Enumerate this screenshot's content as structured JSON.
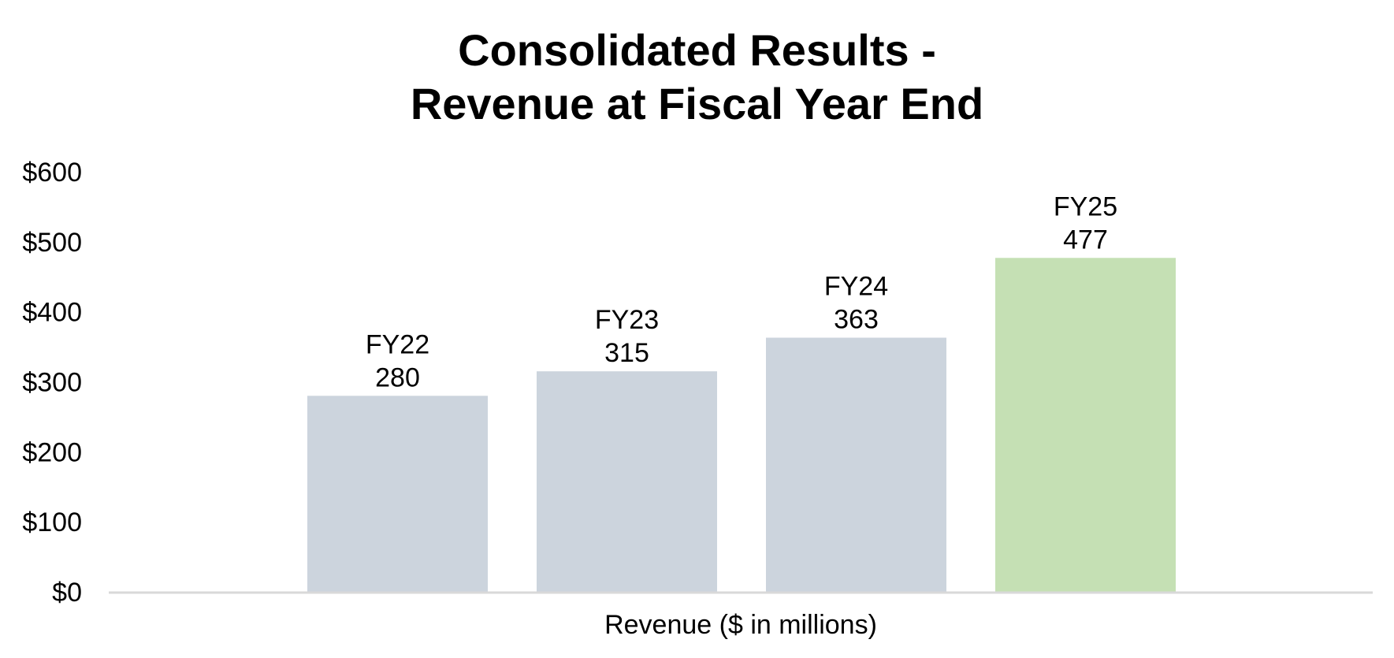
{
  "chart_data": {
    "type": "bar",
    "title": [
      "Consolidated Results -",
      "Revenue at Fiscal Year End"
    ],
    "xlabel": "Revenue ($ in millions)",
    "ylabel": "",
    "categories": [
      "FY22",
      "FY23",
      "FY24",
      "FY25"
    ],
    "values": [
      280,
      315,
      363,
      477
    ],
    "data_labels": [
      "280",
      "315",
      "363",
      "477"
    ],
    "ylim": [
      0,
      600
    ],
    "yticks": [
      0,
      100,
      200,
      300,
      400,
      500,
      600
    ],
    "ytick_labels": [
      "$0",
      "$100",
      "$200",
      "$300",
      "$400",
      "$500",
      "$600"
    ],
    "grid": false,
    "legend": "none",
    "colors": {
      "bar_default": "#ccd4dd",
      "bar_highlight": "#c5e0b4",
      "axis_line": "#d9d9d9",
      "text": "#000000"
    },
    "highlight_index": 3
  }
}
